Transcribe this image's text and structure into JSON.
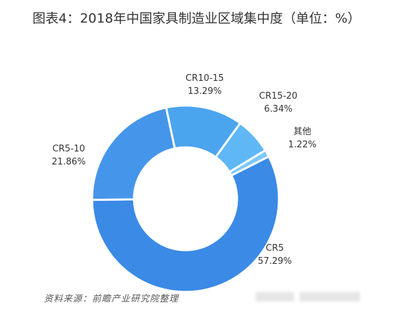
{
  "title": "图表4：2018年中国家具制造业区域集中度（单位：%）",
  "source": "资料来源：前瞻产业研究院整理",
  "chart_data": {
    "type": "pie",
    "variant": "donut",
    "title": "图表4：2018年中国家具制造业区域集中度（单位：%）",
    "unit": "%",
    "slices": [
      {
        "label": "CR10-15",
        "value": 13.29,
        "display": "13.29%",
        "color": "#4aa4ee"
      },
      {
        "label": "CR15-20",
        "value": 6.34,
        "display": "6.34%",
        "color": "#5fb8f5"
      },
      {
        "label": "其他",
        "value": 1.22,
        "display": "1.22%",
        "color": "#7cc8f8"
      },
      {
        "label": "CR5",
        "value": 57.29,
        "display": "57.29%",
        "color": "#3a8ae6"
      },
      {
        "label": "CR5-10",
        "value": 21.86,
        "display": "21.86%",
        "color": "#4596ea"
      }
    ],
    "legend": "none"
  }
}
